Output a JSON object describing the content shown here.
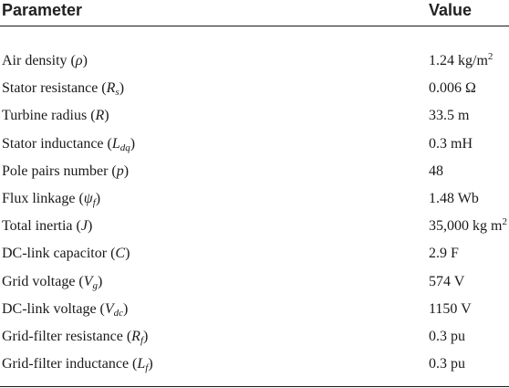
{
  "table": {
    "headers": {
      "parameter": "Parameter",
      "value": "Value"
    },
    "rows": [
      {
        "name": "Air density (",
        "sym": "ρ",
        "sub": "",
        "close": ")",
        "value": "1.24 kg/m",
        "sup": "2"
      },
      {
        "name": "Stator resistance (",
        "sym": "R",
        "sub": "s",
        "close": ")",
        "value": "0.006 Ω",
        "sup": ""
      },
      {
        "name": "Turbine radius (",
        "sym": "R",
        "sub": "",
        "close": ")",
        "value": "33.5 m",
        "sup": ""
      },
      {
        "name": "Stator inductance (",
        "sym": "L",
        "sub": "dq",
        "close": ")",
        "value": "0.3 mH",
        "sup": ""
      },
      {
        "name": "Pole pairs number (",
        "sym": "p",
        "sub": "",
        "close": ")",
        "value": "48",
        "sup": ""
      },
      {
        "name": "Flux linkage (",
        "sym": "ψ",
        "sub": "f",
        "close": ")",
        "value": "1.48 Wb",
        "sup": ""
      },
      {
        "name": "Total inertia (",
        "sym": "J",
        "sub": "",
        "close": ")",
        "value": "35,000 kg m",
        "sup": "2"
      },
      {
        "name": "DC-link capacitor (",
        "sym": "C",
        "sub": "",
        "close": ")",
        "value": "2.9 F",
        "sup": ""
      },
      {
        "name": "Grid voltage (",
        "sym": "V",
        "sub": "g",
        "close": ")",
        "value": "574 V",
        "sup": ""
      },
      {
        "name": "DC-link voltage (",
        "sym": "V",
        "sub": "dc",
        "close": ")",
        "value": "1150 V",
        "sup": ""
      },
      {
        "name": "Grid-filter resistance (",
        "sym": "R",
        "sub": "f",
        "close": ")",
        "value": "0.3 pu",
        "sup": ""
      },
      {
        "name": "Grid-filter inductance (",
        "sym": "L",
        "sub": "f",
        "close": ")",
        "value": "0.3 pu",
        "sup": ""
      }
    ]
  }
}
